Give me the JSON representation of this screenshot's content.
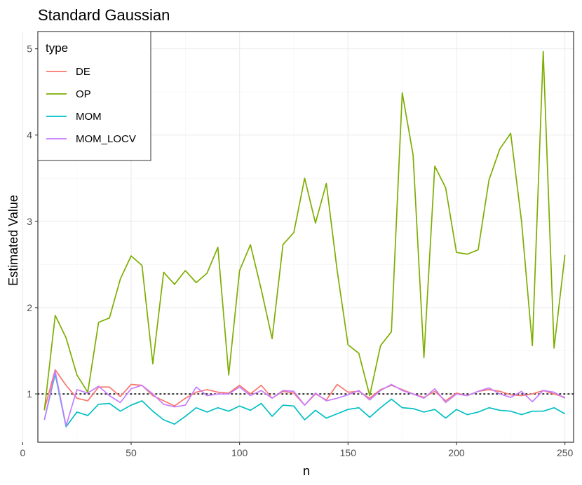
{
  "chart_data": {
    "type": "line",
    "title": "Standard Gaussian",
    "xlabel": "n",
    "ylabel": "Estimated Value",
    "xlim": [
      7,
      254
    ],
    "ylim": [
      0.44,
      5.2
    ],
    "x_ticks": [
      0,
      50,
      100,
      150,
      200,
      250
    ],
    "y_ticks": [
      1,
      2,
      3,
      4,
      5
    ],
    "grid": true,
    "legend": {
      "title": "type",
      "position": "top-left"
    },
    "reference_line": {
      "y": 1,
      "style": "dotted"
    },
    "x": [
      10,
      15,
      20,
      25,
      30,
      35,
      40,
      45,
      50,
      55,
      60,
      65,
      70,
      75,
      80,
      85,
      90,
      95,
      100,
      105,
      110,
      115,
      120,
      125,
      130,
      135,
      140,
      145,
      150,
      155,
      160,
      165,
      170,
      175,
      180,
      185,
      190,
      195,
      200,
      205,
      210,
      215,
      220,
      225,
      230,
      235,
      240,
      245,
      250
    ],
    "series": [
      {
        "name": "DE",
        "color": "#F8766D",
        "values": [
          0.82,
          1.28,
          1.1,
          0.95,
          0.92,
          1.08,
          1.08,
          0.97,
          1.11,
          1.1,
          0.98,
          0.92,
          0.86,
          0.95,
          1.02,
          1.05,
          1.02,
          1.01,
          1.1,
          1.0,
          1.1,
          0.95,
          1.03,
          1.01,
          0.87,
          1.0,
          0.93,
          1.11,
          1.02,
          1.03,
          0.95,
          1.05,
          1.1,
          1.05,
          1.0,
          0.96,
          1.03,
          0.92,
          1.01,
          0.98,
          1.03,
          1.05,
          1.03,
          0.99,
          0.98,
          1.0,
          1.04,
          1.0,
          0.96
        ]
      },
      {
        "name": "OP",
        "color": "#7CAE00",
        "values": [
          0.81,
          1.91,
          1.65,
          1.22,
          1.02,
          1.83,
          1.88,
          2.33,
          2.6,
          2.49,
          1.35,
          2.41,
          2.27,
          2.43,
          2.29,
          2.4,
          2.7,
          1.22,
          2.43,
          2.73,
          2.21,
          1.64,
          2.73,
          2.87,
          3.5,
          2.98,
          3.44,
          2.43,
          1.57,
          1.47,
          0.98,
          1.56,
          1.72,
          4.49,
          3.77,
          1.42,
          3.64,
          3.39,
          2.64,
          2.62,
          2.67,
          3.48,
          3.84,
          4.02,
          3.0,
          1.56,
          4.97,
          1.53,
          2.61
        ]
      },
      {
        "name": "MOM",
        "color": "#00BFC4",
        "values": [
          0.7,
          1.23,
          0.62,
          0.79,
          0.75,
          0.88,
          0.89,
          0.8,
          0.87,
          0.92,
          0.8,
          0.7,
          0.65,
          0.74,
          0.84,
          0.79,
          0.84,
          0.8,
          0.86,
          0.81,
          0.89,
          0.74,
          0.87,
          0.86,
          0.7,
          0.81,
          0.72,
          0.77,
          0.82,
          0.84,
          0.73,
          0.84,
          0.94,
          0.84,
          0.83,
          0.79,
          0.82,
          0.72,
          0.82,
          0.76,
          0.79,
          0.84,
          0.81,
          0.8,
          0.76,
          0.8,
          0.8,
          0.84,
          0.77
        ]
      },
      {
        "name": "MOM_LOCV",
        "color": "#C77CFF",
        "values": [
          0.7,
          1.26,
          0.63,
          1.05,
          1.01,
          1.09,
          0.98,
          0.9,
          1.06,
          1.1,
          1.0,
          0.88,
          0.85,
          0.87,
          1.08,
          0.98,
          1.0,
          1.0,
          1.08,
          0.98,
          1.04,
          0.95,
          1.04,
          1.03,
          0.87,
          1.01,
          0.92,
          0.95,
          0.99,
          1.04,
          0.93,
          1.04,
          1.11,
          1.04,
          1.0,
          0.95,
          1.06,
          0.9,
          1.0,
          0.98,
          1.03,
          1.07,
          1.0,
          0.96,
          1.03,
          0.91,
          1.04,
          1.02,
          0.95
        ]
      }
    ]
  }
}
